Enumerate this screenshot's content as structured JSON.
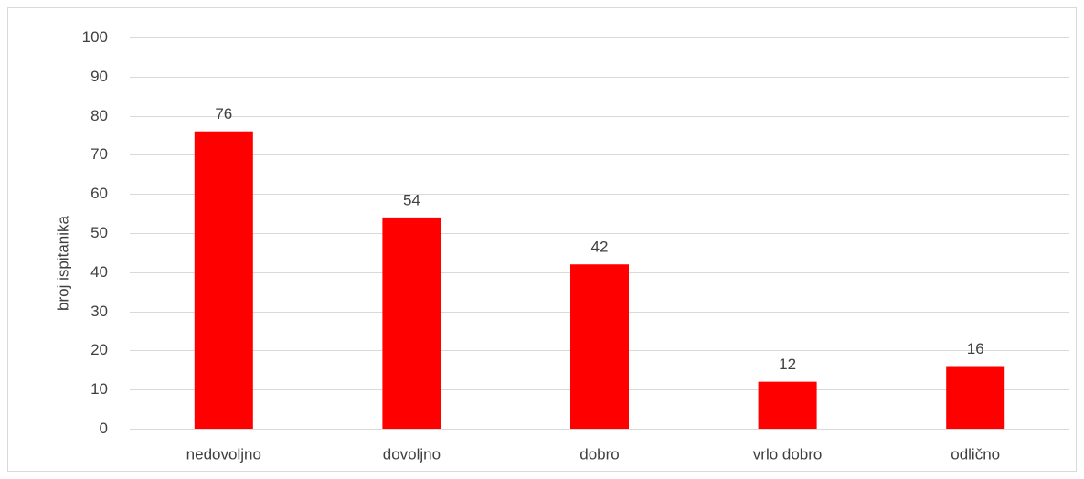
{
  "chart_data": {
    "type": "bar",
    "categories": [
      "nedovoljno",
      "dovoljno",
      "dobro",
      "vrlo dobro",
      "odlično"
    ],
    "values": [
      76,
      54,
      42,
      12,
      16
    ],
    "title": "",
    "xlabel": "",
    "ylabel": "broj ispitanika",
    "ylim": [
      0,
      100
    ],
    "yticks": [
      0,
      10,
      20,
      30,
      40,
      50,
      60,
      70,
      80,
      90,
      100
    ],
    "grid": true,
    "legend": "none",
    "bar_color": "#ff0000",
    "data_labels": [
      "76",
      "54",
      "42",
      "12",
      "16"
    ]
  }
}
